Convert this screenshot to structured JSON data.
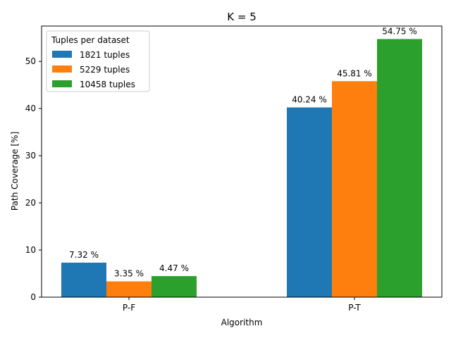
{
  "chart_data": {
    "type": "bar",
    "title": "K = 5",
    "xlabel": "Algorithm",
    "ylabel": "Path Coverage [%]",
    "categories": [
      "P-F",
      "P-T"
    ],
    "ylim": [
      0,
      57.5
    ],
    "yticks": [
      0,
      10,
      20,
      30,
      40,
      50
    ],
    "grid": false,
    "legend": {
      "title": "Tuples per dataset",
      "placement": "top-left"
    },
    "series": [
      {
        "name": "1821 tuples",
        "color": "#1f77b4",
        "values": [
          7.32,
          40.24
        ],
        "labels": [
          "7.32 %",
          "40.24 %"
        ]
      },
      {
        "name": "5229 tuples",
        "color": "#ff7f0e",
        "values": [
          3.35,
          45.81
        ],
        "labels": [
          "3.35 %",
          "45.81 %"
        ]
      },
      {
        "name": "10458 tuples",
        "color": "#2ca02c",
        "values": [
          4.47,
          54.75
        ],
        "labels": [
          "4.47 %",
          "54.75 %"
        ]
      }
    ]
  }
}
